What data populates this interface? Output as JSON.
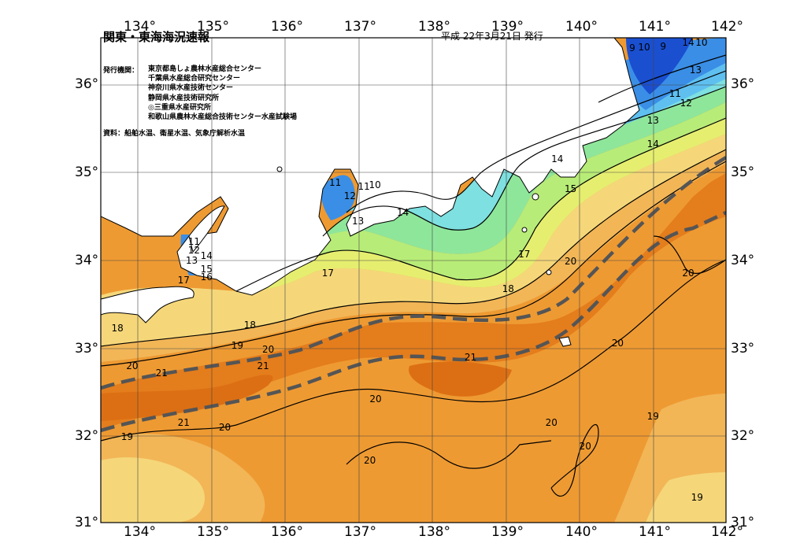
{
  "header": {
    "title": "関東・東海海況速報",
    "issue_date": "平成 22年3月21日 発行"
  },
  "issuers": {
    "label": "発行機関：",
    "items": [
      "東京都島しょ農林水産総合センター",
      "千葉県水産総合研究センター",
      "神奈川県水産技術センター",
      "静岡県水産技術研究所",
      "◎三重県水産研究所",
      "和歌山県農林水産総合技術センター水産試験場"
    ]
  },
  "source": "資料：船舶水温、衛星水温、気象庁解析水温",
  "axes": {
    "lon_labels": [
      "134°",
      "135°",
      "136°",
      "137°",
      "138°",
      "139°",
      "140°",
      "141°",
      "142°"
    ],
    "lat_labels": [
      "36°",
      "35°",
      "34°",
      "33°",
      "32°",
      "31°"
    ]
  },
  "colors": {
    "water_9": "#1a4fd0",
    "water_11": "#3a8ee6",
    "water_13": "#5fc0f0",
    "water_14": "#7ee0e0",
    "water_15": "#8ee69a",
    "water_16": "#b8ec78",
    "water_17": "#e6ee70",
    "water_18": "#f5d77a",
    "water_19": "#f2b657",
    "water_20": "#ee9a32",
    "water_21": "#e47d1c",
    "land": "#ffffff",
    "kuroshio_axis": "#555555"
  },
  "contour_labels": [
    {
      "text": "9",
      "lon": 140.76,
      "lat": 36.4
    },
    {
      "text": "10",
      "lon": 140.88,
      "lat": 36.41
    },
    {
      "text": "9",
      "lon": 141.18,
      "lat": 36.42
    },
    {
      "text": "14",
      "lon": 141.48,
      "lat": 36.47
    },
    {
      "text": "10",
      "lon": 141.66,
      "lat": 36.47
    },
    {
      "text": "13",
      "lon": 141.58,
      "lat": 36.15
    },
    {
      "text": "11",
      "lon": 141.3,
      "lat": 35.88
    },
    {
      "text": "12",
      "lon": 141.45,
      "lat": 35.78
    },
    {
      "text": "13",
      "lon": 141.0,
      "lat": 35.58
    },
    {
      "text": "14",
      "lon": 141.0,
      "lat": 35.31
    },
    {
      "text": "14",
      "lon": 139.7,
      "lat": 35.14
    },
    {
      "text": "15",
      "lon": 139.88,
      "lat": 34.8
    },
    {
      "text": "11",
      "lon": 136.68,
      "lat": 34.87
    },
    {
      "text": "12",
      "lon": 136.88,
      "lat": 34.72
    },
    {
      "text": "11",
      "lon": 137.07,
      "lat": 34.82
    },
    {
      "text": "10",
      "lon": 137.22,
      "lat": 34.84
    },
    {
      "text": "13",
      "lon": 136.99,
      "lat": 34.43
    },
    {
      "text": "14",
      "lon": 137.6,
      "lat": 34.53
    },
    {
      "text": "11",
      "lon": 134.76,
      "lat": 34.2
    },
    {
      "text": "12",
      "lon": 134.76,
      "lat": 34.1
    },
    {
      "text": "14",
      "lon": 134.93,
      "lat": 34.03
    },
    {
      "text": "13",
      "lon": 134.73,
      "lat": 33.98
    },
    {
      "text": "15",
      "lon": 134.93,
      "lat": 33.88
    },
    {
      "text": "16",
      "lon": 134.93,
      "lat": 33.79
    },
    {
      "text": "17",
      "lon": 134.62,
      "lat": 33.76
    },
    {
      "text": "17",
      "lon": 136.58,
      "lat": 33.84
    },
    {
      "text": "17",
      "lon": 139.25,
      "lat": 34.05
    },
    {
      "text": "20",
      "lon": 139.88,
      "lat": 33.97
    },
    {
      "text": "18",
      "lon": 139.03,
      "lat": 33.66
    },
    {
      "text": "20",
      "lon": 141.48,
      "lat": 33.84
    },
    {
      "text": "18",
      "lon": 133.72,
      "lat": 33.21
    },
    {
      "text": "18",
      "lon": 135.52,
      "lat": 33.24
    },
    {
      "text": "19",
      "lon": 135.35,
      "lat": 33.01
    },
    {
      "text": "20",
      "lon": 135.77,
      "lat": 32.97
    },
    {
      "text": "21",
      "lon": 135.7,
      "lat": 32.78
    },
    {
      "text": "20",
      "lon": 133.92,
      "lat": 32.78
    },
    {
      "text": "21",
      "lon": 134.32,
      "lat": 32.7
    },
    {
      "text": "21",
      "lon": 138.52,
      "lat": 32.88
    },
    {
      "text": "20",
      "lon": 140.52,
      "lat": 33.04
    },
    {
      "text": "20",
      "lon": 137.23,
      "lat": 32.4
    },
    {
      "text": "21",
      "lon": 134.62,
      "lat": 32.13
    },
    {
      "text": "20",
      "lon": 135.18,
      "lat": 32.08
    },
    {
      "text": "19",
      "lon": 133.85,
      "lat": 31.97
    },
    {
      "text": "20",
      "lon": 139.62,
      "lat": 32.13
    },
    {
      "text": "19",
      "lon": 141.0,
      "lat": 32.2
    },
    {
      "text": "20",
      "lon": 137.15,
      "lat": 31.7
    },
    {
      "text": "20",
      "lon": 140.08,
      "lat": 31.86
    },
    {
      "text": "19",
      "lon": 141.6,
      "lat": 31.28
    }
  ]
}
